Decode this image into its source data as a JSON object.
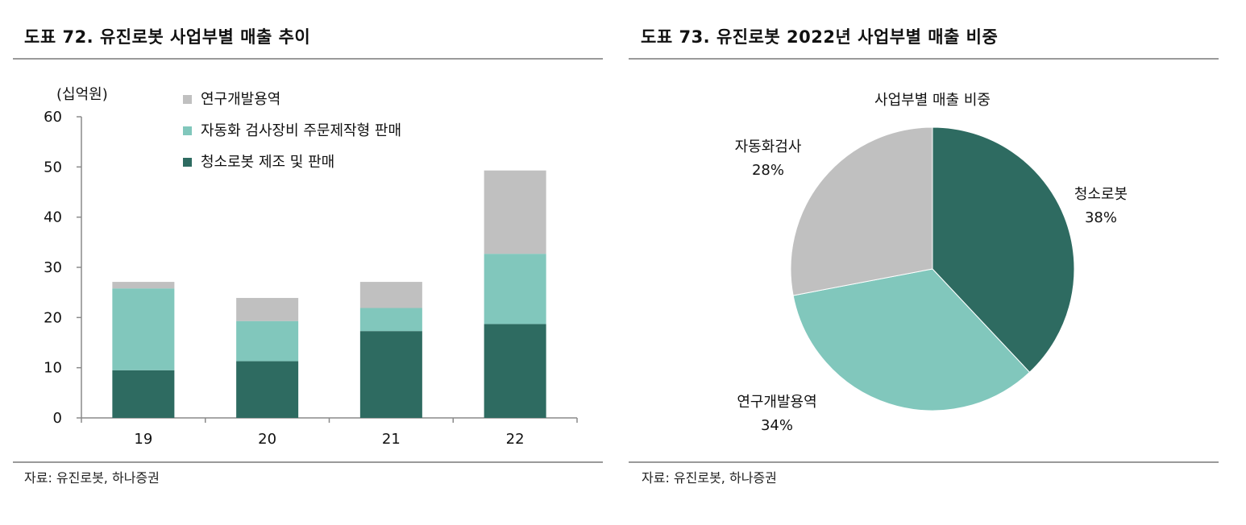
{
  "left": {
    "title": "도표 72. 유진로봇 사업부별 매출 추이",
    "source": "자료: 유진로봇, 하나증권"
  },
  "right": {
    "title": "도표 73. 유진로봇 2022년 사업부별 매출 비중",
    "source": "자료: 유진로봇, 하나증권"
  },
  "chart_data": [
    {
      "type": "bar",
      "stacked": true,
      "unit_label": "(십억원)",
      "categories": [
        "19",
        "20",
        "21",
        "22"
      ],
      "ylim": [
        0,
        60
      ],
      "yticks": [
        0,
        10,
        20,
        30,
        40,
        50,
        60
      ],
      "legend_position": "top-left",
      "series": [
        {
          "name": "청소로봇 제조 및 판매",
          "values": [
            9.5,
            11.3,
            17.3,
            18.7
          ],
          "color": "#2e6b61"
        },
        {
          "name": "자동화 검사장비 주문제작형 판매",
          "values": [
            16.3,
            8.0,
            4.6,
            14.0
          ],
          "color": "#81c7bc"
        },
        {
          "name": "연구개발용역",
          "values": [
            1.3,
            4.6,
            5.2,
            16.6
          ],
          "color": "#c0c0c0"
        }
      ]
    },
    {
      "type": "pie",
      "title": "사업부별 매출 비중",
      "slices": [
        {
          "label": "청소로봇",
          "value": 38,
          "value_label": "38%",
          "color": "#2e6b61"
        },
        {
          "label": "연구개발용역",
          "value": 34,
          "value_label": "34%",
          "color": "#81c7bc"
        },
        {
          "label": "자동화검사",
          "value": 28,
          "value_label": "28%",
          "color": "#c0c0c0"
        }
      ]
    }
  ]
}
